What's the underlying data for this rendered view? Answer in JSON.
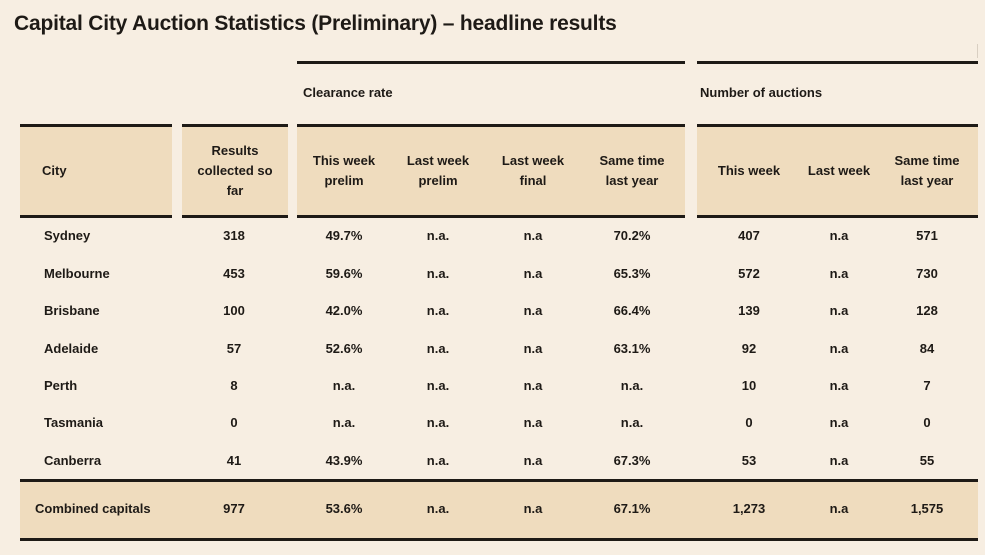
{
  "title": "Capital City Auction Statistics (Preliminary) – headline results",
  "groups": {
    "clearance": "Clearance rate",
    "auctions": "Number of auctions"
  },
  "headers": {
    "city": "City",
    "results": "Results collected so far",
    "cr_this_week": "This week prelim",
    "cr_last_week_prelim": "Last week prelim",
    "cr_last_week_final": "Last week final",
    "cr_same_time": "Same time last year",
    "na_this_week": "This week",
    "na_last_week": "Last week",
    "na_same_time": "Same time last year"
  },
  "rows": [
    [
      "Sydney",
      "318",
      "49.7%",
      "n.a.",
      "n.a",
      "70.2%",
      "407",
      "n.a",
      "571"
    ],
    [
      "Melbourne",
      "453",
      "59.6%",
      "n.a.",
      "n.a",
      "65.3%",
      "572",
      "n.a",
      "730"
    ],
    [
      "Brisbane",
      "100",
      "42.0%",
      "n.a.",
      "n.a",
      "66.4%",
      "139",
      "n.a",
      "128"
    ],
    [
      "Adelaide",
      "57",
      "52.6%",
      "n.a.",
      "n.a",
      "63.1%",
      "92",
      "n.a",
      "84"
    ],
    [
      "Perth",
      "8",
      "n.a.",
      "n.a.",
      "n.a",
      "n.a.",
      "10",
      "n.a",
      "7"
    ],
    [
      "Tasmania",
      "0",
      "n.a.",
      "n.a.",
      "n.a",
      "n.a.",
      "0",
      "n.a",
      "0"
    ],
    [
      "Canberra",
      "41",
      "43.9%",
      "n.a.",
      "n.a",
      "67.3%",
      "53",
      "n.a",
      "55"
    ]
  ],
  "total": [
    "Combined capitals",
    "977",
    "53.6%",
    "n.a.",
    "n.a",
    "67.1%",
    "1,273",
    "n.a",
    "1,575"
  ],
  "colors": {
    "background": "#f7eee2",
    "header_band": "#efdcbe",
    "rule": "#1e1a16"
  }
}
